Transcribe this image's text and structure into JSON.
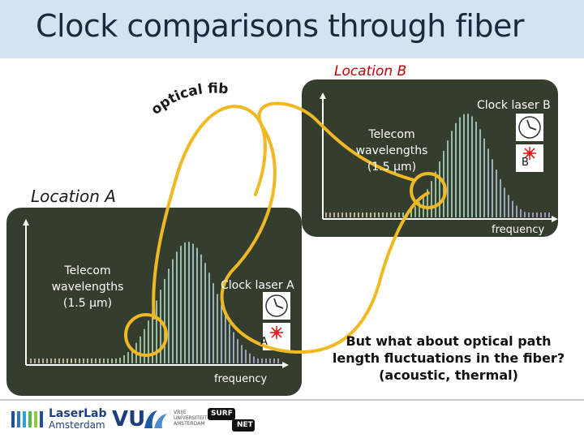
{
  "title": "Clock comparisons through fiber",
  "location_a": "Location A",
  "location_b": "Location B",
  "fiber_label": "optical fiber",
  "panel_a": {
    "telecom": [
      "Telecom",
      "wavelengths",
      "(1.5 µm)"
    ],
    "clock_laser": "Clock laser A",
    "laser_letter": "A",
    "frequency": "frequency"
  },
  "panel_b": {
    "telecom": [
      "Telecom",
      "wavelengths",
      "(1.5 µm)"
    ],
    "clock_laser": "Clock laser B",
    "laser_letter": "B",
    "frequency": "frequency"
  },
  "question": [
    "But what about optical path",
    "length fluctuations in the fiber?",
    "(acoustic, thermal)"
  ],
  "logos": {
    "laserlab_line1": "LaserLab",
    "laserlab_line2": "Amsterdam",
    "vu_mark": "VU",
    "vu_sub1": "VRIJE",
    "vu_sub2": "UNIVERSITEIT",
    "vu_sub3": "AMSTERDAM",
    "surf_top": "SURF",
    "surf_bottom": "NET"
  },
  "colors": {
    "fiber": "#f0b823",
    "panel_bg": "#353e2e",
    "title_bar": "#d2e4f0"
  }
}
